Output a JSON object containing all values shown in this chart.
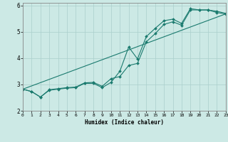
{
  "xlabel": "Humidex (Indice chaleur)",
  "xlim": [
    0,
    23
  ],
  "ylim": [
    2,
    6.1
  ],
  "yticks": [
    2,
    3,
    4,
    5,
    6
  ],
  "xticks": [
    0,
    1,
    2,
    3,
    4,
    5,
    6,
    7,
    8,
    9,
    10,
    11,
    12,
    13,
    14,
    15,
    16,
    17,
    18,
    19,
    20,
    21,
    22,
    23
  ],
  "background_color": "#cce9e5",
  "grid_color": "#aacfcc",
  "line_color": "#1a7a6e",
  "line1_x": [
    0,
    1,
    2,
    3,
    4,
    5,
    6,
    7,
    8,
    9,
    10,
    11,
    12,
    13,
    14,
    15,
    16,
    17,
    18,
    19,
    20,
    21,
    22,
    23
  ],
  "line1_y": [
    2.82,
    2.73,
    2.52,
    2.8,
    2.84,
    2.88,
    2.9,
    3.06,
    3.08,
    2.93,
    3.22,
    3.3,
    3.72,
    3.8,
    4.62,
    4.93,
    5.28,
    5.38,
    5.25,
    5.83,
    5.83,
    5.83,
    5.73,
    5.68
  ],
  "line2_x": [
    0,
    1,
    2,
    3,
    4,
    5,
    6,
    7,
    8,
    9,
    10,
    11,
    12,
    13,
    14,
    15,
    16,
    17,
    18,
    19,
    20,
    21,
    22,
    23
  ],
  "line2_y": [
    2.82,
    2.73,
    2.52,
    2.78,
    2.82,
    2.86,
    2.88,
    3.04,
    3.04,
    2.88,
    3.08,
    3.5,
    4.42,
    3.97,
    4.82,
    5.13,
    5.42,
    5.48,
    5.32,
    5.88,
    5.83,
    5.83,
    5.78,
    5.7
  ],
  "line3_x": [
    0,
    23
  ],
  "line3_y": [
    2.82,
    5.68
  ]
}
